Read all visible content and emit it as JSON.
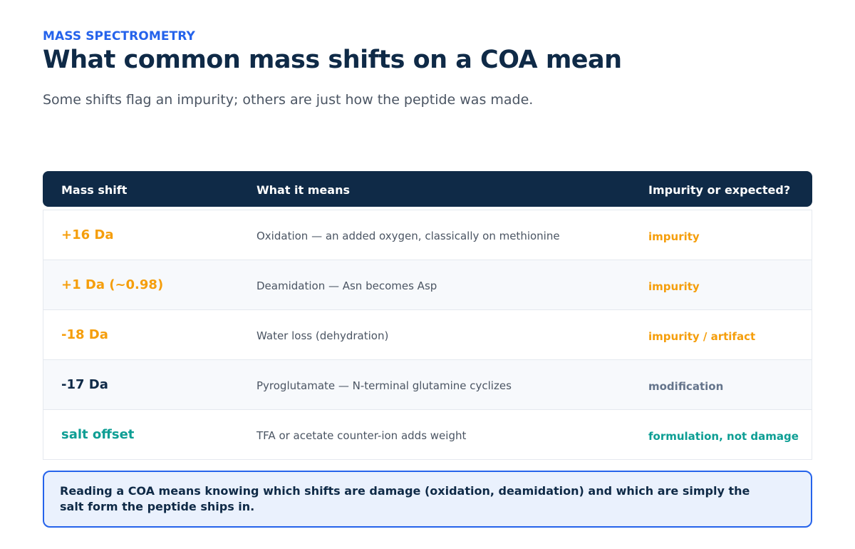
{
  "header": {
    "eyebrow": "MASS SPECTROMETRY",
    "title": "What common mass shifts on a COA mean",
    "subtitle": "Some shifts flag an impurity; others are just how the peptide was made."
  },
  "table": {
    "columns": [
      "Mass shift",
      "What it means",
      "Impurity or expected?"
    ],
    "rows": [
      {
        "shift": "+16 Da",
        "meaning": "Oxidation — an added oxygen, classically on methionine",
        "verdict": "impurity",
        "shift_color": "#f59e0b",
        "verdict_color": "#f59e0b"
      },
      {
        "shift": "+1 Da (~0.98)",
        "meaning": "Deamidation — Asn becomes Asp",
        "verdict": "impurity",
        "shift_color": "#f59e0b",
        "verdict_color": "#f59e0b"
      },
      {
        "shift": "-18 Da",
        "meaning": "Water loss (dehydration)",
        "verdict": "impurity / artifact",
        "shift_color": "#f59e0b",
        "verdict_color": "#f59e0b"
      },
      {
        "shift": "-17 Da",
        "meaning": "Pyroglutamate — N-terminal glutamine cyclizes",
        "verdict": "modification",
        "shift_color": "#0f2a47",
        "verdict_color": "#64748b"
      },
      {
        "shift": "salt offset",
        "meaning": "TFA or acetate counter-ion adds weight",
        "verdict": "formulation, not damage",
        "shift_color": "#0d9e94",
        "verdict_color": "#0d9e94"
      }
    ]
  },
  "callout": {
    "text": "Reading a COA means knowing which shifts are damage (oxidation, deamidation) and which are simply the salt form the peptide ships in."
  },
  "colors": {
    "accent": "#2563eb",
    "navy": "#0f2a47",
    "amber": "#f59e0b",
    "teal": "#0d9e94",
    "slate": "#64748b"
  }
}
